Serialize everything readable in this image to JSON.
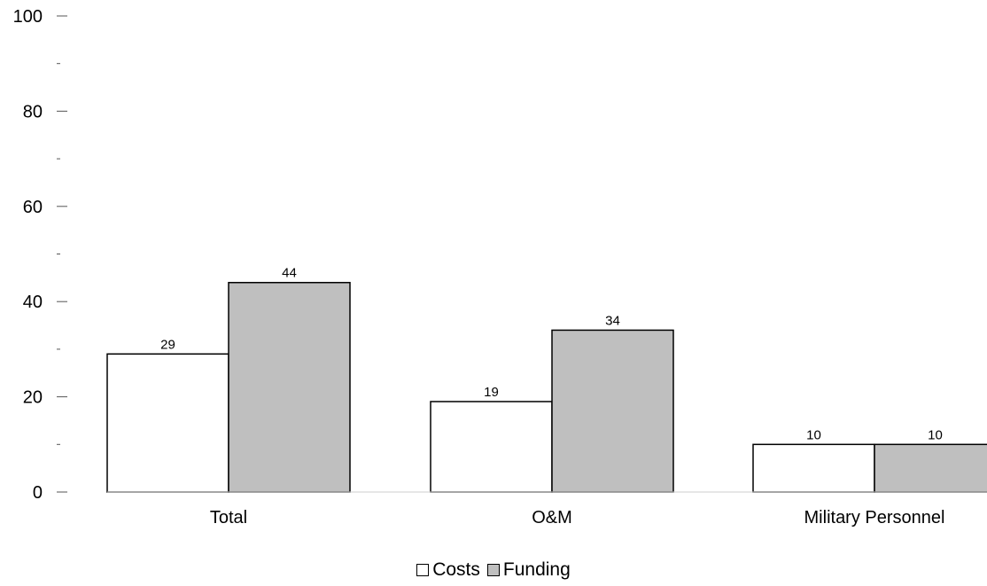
{
  "chart_data": {
    "type": "bar",
    "categories": [
      "Total",
      "O&M",
      "Military Personnel"
    ],
    "series": [
      {
        "name": "Costs",
        "values": [
          29,
          19,
          10
        ],
        "color": "#ffffff"
      },
      {
        "name": "Funding",
        "values": [
          44,
          34,
          10
        ],
        "color": "#bfbfbf"
      }
    ],
    "ylim": [
      0,
      100
    ],
    "yticks": [
      0,
      20,
      40,
      60,
      80,
      100
    ],
    "ytick_labels": [
      "0",
      "20",
      "40",
      "60",
      "80",
      "100"
    ],
    "grid": false,
    "legend_position": "bottom-center"
  }
}
